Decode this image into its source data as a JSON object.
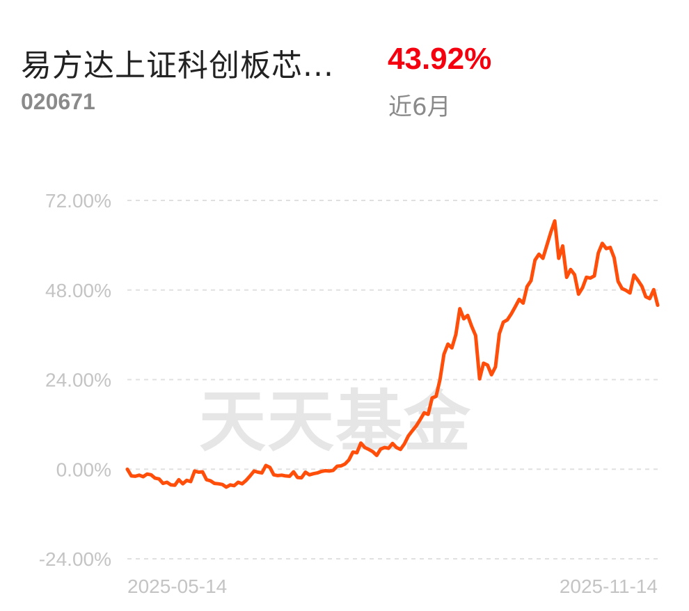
{
  "header": {
    "fund_name": "易方达上证科创板芯...",
    "fund_code": "020671",
    "return_value": "43.92%",
    "period_label": "近6月"
  },
  "watermark": "天天基金",
  "colors": {
    "line": "#ff4d0a",
    "return": "#f5000f",
    "grid": "#e0e0e0",
    "axis_text": "#c4c4c4"
  },
  "chart_data": {
    "type": "line",
    "title": "",
    "xlabel": "",
    "ylabel": "",
    "ylim": [
      -24,
      72
    ],
    "yticks": [
      72,
      48,
      24,
      0,
      -24
    ],
    "ytick_labels": [
      "72.00%",
      "48.00%",
      "24.00%",
      "0.00%",
      "-24.00%"
    ],
    "x_start": "2025-05-14",
    "x_end": "2025-11-14",
    "xtick_labels": [
      "2025-05-14",
      "2025-11-14"
    ],
    "grid": true,
    "series": [
      {
        "values": [
          0,
          -1.8,
          -1.9,
          -1.6,
          -2.0,
          -1.3,
          -1.5,
          -2.4,
          -2.6,
          -3.8,
          -3.5,
          -4.2,
          -4.3,
          -2.8,
          -3.9,
          -3.0,
          -3.3,
          -0.5,
          -0.8,
          -0.7,
          -2.8,
          -3.1,
          -3.8,
          -3.9,
          -4.1,
          -4.8,
          -4.2,
          -4.4,
          -3.5,
          -3.9,
          -3.0,
          -1.8,
          -0.5,
          -0.8,
          -1.0,
          1.0,
          0.5,
          -1.5,
          -1.7,
          -1.6,
          -1.8,
          -1.9,
          -0.7,
          -2.2,
          -2.3,
          -0.8,
          -1.5,
          -1.2,
          -1.0,
          -0.6,
          -0.4,
          -0.5,
          -0.3,
          0.8,
          0.9,
          1.4,
          2.5,
          4.6,
          4.4,
          7.0,
          5.8,
          5.3,
          4.7,
          3.7,
          5.4,
          5.8,
          5.6,
          6.9,
          5.8,
          5.3,
          6.8,
          8.9,
          10.3,
          11.6,
          13.3,
          15.1,
          14.7,
          19.1,
          19.5,
          24.0,
          30.8,
          33.5,
          32.5,
          36.1,
          43.0,
          40.3,
          41.2,
          38.3,
          35.8,
          24.2,
          28.4,
          27.9,
          25.3,
          27.4,
          36.3,
          39.4,
          40.0,
          41.6,
          43.5,
          45.5,
          44.5,
          48.9,
          50.5,
          56.0,
          57.6,
          56.5,
          60.0,
          63.5,
          66.5,
          56.5,
          59.8,
          51.4,
          53.5,
          52.1,
          46.9,
          48.6,
          51.4,
          51.2,
          51.8,
          57.9,
          60.5,
          59.1,
          59.4,
          56.7,
          50.3,
          48.4,
          47.9,
          47.2,
          52.0,
          50.6,
          49.0,
          46.2,
          45.7,
          48.1,
          43.92
        ]
      }
    ]
  }
}
